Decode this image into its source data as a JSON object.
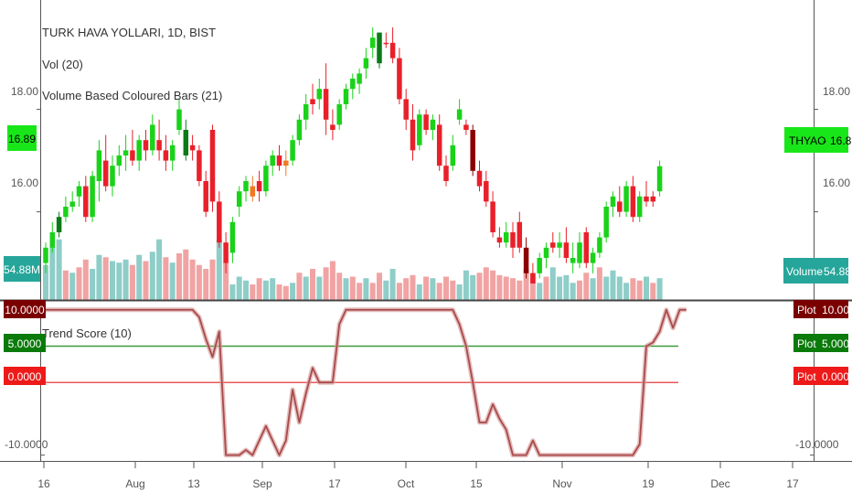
{
  "header": {
    "symbol_line": "TURK HAVA YOLLARI, 1D, BIST",
    "vol_label": "Vol (20)",
    "vbcb_label": "Volume Based Coloured Bars (21)",
    "trend_label": "Trend Score (10)"
  },
  "price_axis": {
    "ticks": [
      "18.00",
      "16.00"
    ],
    "current": "16.89"
  },
  "badges": {
    "left_price": "16.89",
    "left_volume": "54.88M",
    "right_symbol": "THYAO",
    "right_price": "16.89",
    "right_volume_label": "Volume",
    "right_volume": "54.88M",
    "plot_label": "Plot"
  },
  "score_axis": {
    "ticks": [
      "10.0000",
      "5.0000",
      "0.0000",
      "-10.0000"
    ],
    "left_ticks": [
      "10.0000",
      "5.0000",
      "0.0000",
      "-10.0000"
    ]
  },
  "x_axis": {
    "labels": [
      "16",
      "Aug",
      "13",
      "Sep",
      "17",
      "Oct",
      "15",
      "Nov",
      "19",
      "Dec",
      "17"
    ]
  },
  "colors": {
    "bull": "#19d219",
    "bear": "#e8202a",
    "dark_bull": "#0a7a16",
    "dark_bear": "#8b0000",
    "orange": "#f07a22",
    "vol_bull": "#8ecdc8",
    "vol_bear": "#f1a3a3",
    "trend_line": "#a94a4a",
    "upper_line": "#3a9a3a",
    "lower_line": "#e85858",
    "divider": "#444444"
  },
  "chart_data": [
    {
      "type": "candlestick",
      "title": "TURK HAVA YOLLARI, 1D, BIST",
      "y_ticks": [
        16.0,
        18.0
      ],
      "ylim": [
        14.6,
        19.6
      ],
      "last_price": 16.89,
      "ohlc": [
        [
          15.0,
          15.4,
          14.8,
          15.3,
          "bull"
        ],
        [
          15.3,
          15.8,
          15.2,
          15.6,
          "bull"
        ],
        [
          15.6,
          16.0,
          15.5,
          15.9,
          "dark_bull"
        ],
        [
          15.9,
          16.3,
          15.8,
          16.1,
          "bull"
        ],
        [
          16.1,
          16.4,
          16.0,
          16.2,
          "bull"
        ],
        [
          16.3,
          16.6,
          16.1,
          16.5,
          "bull"
        ],
        [
          16.5,
          16.7,
          15.8,
          15.9,
          "bear"
        ],
        [
          15.9,
          16.8,
          15.8,
          16.7,
          "bull"
        ],
        [
          16.6,
          17.4,
          16.2,
          17.2,
          "bull"
        ],
        [
          17.0,
          17.5,
          16.4,
          16.5,
          "bear"
        ],
        [
          16.5,
          17.1,
          16.3,
          16.9,
          "bull"
        ],
        [
          16.9,
          17.3,
          16.7,
          17.1,
          "bull"
        ],
        [
          17.1,
          17.5,
          16.8,
          17.2,
          "bull"
        ],
        [
          17.2,
          17.6,
          16.9,
          17.0,
          "bear"
        ],
        [
          17.0,
          17.5,
          16.8,
          17.4,
          "bull"
        ],
        [
          17.4,
          17.6,
          17.0,
          17.2,
          "bear"
        ],
        [
          17.2,
          17.9,
          17.1,
          17.7,
          "bull"
        ],
        [
          17.4,
          17.8,
          17.0,
          17.2,
          "bear"
        ],
        [
          17.2,
          17.5,
          16.8,
          17.0,
          "bear"
        ],
        [
          17.0,
          17.4,
          16.8,
          17.3,
          "bull"
        ],
        [
          17.6,
          18.2,
          17.5,
          18.0,
          "bull"
        ],
        [
          17.6,
          17.8,
          17.0,
          17.1,
          "dark_bull"
        ],
        [
          17.3,
          17.5,
          17.0,
          17.2,
          "bear"
        ],
        [
          17.2,
          17.3,
          16.5,
          16.6,
          "bear"
        ],
        [
          16.6,
          16.8,
          15.9,
          16.0,
          "bear"
        ],
        [
          17.6,
          17.7,
          16.0,
          16.2,
          "bear"
        ],
        [
          16.2,
          16.4,
          15.3,
          15.4,
          "bear"
        ],
        [
          15.4,
          15.6,
          14.8,
          15.0,
          "bear"
        ],
        [
          15.2,
          15.9,
          15.0,
          15.8,
          "bull"
        ],
        [
          16.1,
          16.5,
          15.9,
          16.4,
          "bull"
        ],
        [
          16.4,
          16.7,
          16.2,
          16.6,
          "bull"
        ],
        [
          16.5,
          16.7,
          16.2,
          16.3,
          "orange"
        ],
        [
          16.6,
          16.8,
          16.2,
          16.4,
          "bear"
        ],
        [
          16.4,
          17.0,
          16.3,
          16.9,
          "bull"
        ],
        [
          16.9,
          17.2,
          16.7,
          17.1,
          "bull"
        ],
        [
          17.1,
          17.3,
          16.8,
          16.9,
          "bear"
        ],
        [
          16.9,
          17.2,
          16.7,
          17.0,
          "orange"
        ],
        [
          17.0,
          17.5,
          16.9,
          17.4,
          "bull"
        ],
        [
          17.4,
          17.9,
          17.3,
          17.8,
          "bull"
        ],
        [
          17.8,
          18.3,
          17.6,
          18.1,
          "bull"
        ],
        [
          18.1,
          18.5,
          17.9,
          18.2,
          "bear"
        ],
        [
          18.2,
          18.6,
          18.0,
          18.4,
          "bull"
        ],
        [
          18.4,
          18.9,
          17.5,
          17.8,
          "bear"
        ],
        [
          17.6,
          18.0,
          17.4,
          17.7,
          "bear"
        ],
        [
          17.7,
          18.2,
          17.6,
          18.1,
          "bull"
        ],
        [
          18.1,
          18.5,
          18.0,
          18.4,
          "bull"
        ],
        [
          18.4,
          18.7,
          18.2,
          18.6,
          "bull"
        ],
        [
          18.5,
          18.8,
          18.3,
          18.7,
          "bull"
        ],
        [
          18.8,
          19.2,
          18.6,
          19.0,
          "bull"
        ],
        [
          19.2,
          19.6,
          19.0,
          19.4,
          "bull"
        ],
        [
          19.5,
          19.5,
          18.8,
          18.9,
          "dark_bull"
        ],
        [
          19.3,
          19.5,
          19.2,
          19.3,
          "bear"
        ],
        [
          19.3,
          19.6,
          18.9,
          19.0,
          "bear"
        ],
        [
          19.0,
          19.2,
          18.1,
          18.2,
          "bear"
        ],
        [
          18.2,
          18.4,
          17.6,
          17.8,
          "bear"
        ],
        [
          17.8,
          18.1,
          17.0,
          17.2,
          "bear"
        ],
        [
          17.3,
          18.0,
          17.2,
          17.9,
          "bull"
        ],
        [
          17.9,
          18.0,
          17.5,
          17.6,
          "bear"
        ],
        [
          17.6,
          17.9,
          17.4,
          17.8,
          "bull"
        ],
        [
          17.7,
          17.9,
          16.8,
          16.9,
          "bear"
        ],
        [
          16.9,
          17.1,
          16.5,
          16.6,
          "bear"
        ],
        [
          16.9,
          17.5,
          16.8,
          17.3,
          "bull"
        ],
        [
          17.8,
          18.2,
          17.7,
          18.0,
          "bull"
        ],
        [
          17.7,
          17.8,
          17.5,
          17.6,
          "bear"
        ],
        [
          17.6,
          17.7,
          16.7,
          16.8,
          "dark_bear"
        ],
        [
          16.8,
          17.0,
          16.4,
          16.5,
          "bear"
        ],
        [
          16.6,
          16.8,
          16.1,
          16.2,
          "bear"
        ],
        [
          16.2,
          16.4,
          15.5,
          15.6,
          "bear"
        ],
        [
          15.5,
          15.7,
          15.3,
          15.4,
          "bear"
        ],
        [
          15.4,
          15.8,
          15.3,
          15.6,
          "bull"
        ],
        [
          15.6,
          15.8,
          15.1,
          15.3,
          "bear"
        ],
        [
          15.8,
          16.0,
          15.2,
          15.3,
          "bear"
        ],
        [
          15.3,
          15.5,
          14.7,
          14.8,
          "dark_bear"
        ],
        [
          14.8,
          15.0,
          14.6,
          14.6,
          "bear"
        ],
        [
          14.8,
          15.2,
          14.7,
          15.1,
          "bull"
        ],
        [
          15.1,
          15.4,
          14.9,
          15.3,
          "bull"
        ],
        [
          15.4,
          15.6,
          15.2,
          15.3,
          "bear"
        ],
        [
          15.3,
          15.6,
          15.1,
          15.4,
          "bull"
        ],
        [
          15.4,
          15.7,
          15.0,
          15.1,
          "bear"
        ],
        [
          15.1,
          15.4,
          14.8,
          15.0,
          "bull"
        ],
        [
          15.0,
          15.6,
          14.9,
          15.4,
          "bull"
        ],
        [
          15.6,
          15.7,
          14.9,
          15.0,
          "bear"
        ],
        [
          15.0,
          15.3,
          14.8,
          15.2,
          "bull"
        ],
        [
          15.2,
          15.6,
          15.1,
          15.5,
          "bull"
        ],
        [
          15.5,
          16.2,
          15.4,
          16.1,
          "bull"
        ],
        [
          16.1,
          16.4,
          15.9,
          16.3,
          "bull"
        ],
        [
          16.2,
          16.5,
          15.9,
          16.0,
          "bear"
        ],
        [
          16.0,
          16.6,
          15.9,
          16.5,
          "bull"
        ],
        [
          16.5,
          16.7,
          15.8,
          15.9,
          "bear"
        ],
        [
          15.9,
          16.4,
          15.8,
          16.3,
          "bull"
        ],
        [
          16.3,
          16.6,
          16.1,
          16.2,
          "bear"
        ],
        [
          16.2,
          16.4,
          16.1,
          16.3,
          "bear"
        ],
        [
          16.4,
          17.0,
          16.3,
          16.89,
          "bull"
        ]
      ]
    },
    {
      "type": "bar",
      "title": "Vol (20)",
      "last_value": "54.88M",
      "values": [
        [
          0.45,
          "bull"
        ],
        [
          0.68,
          "bull"
        ],
        [
          0.78,
          "bull"
        ],
        [
          0.38,
          "bear"
        ],
        [
          0.35,
          "bull"
        ],
        [
          0.42,
          "bear"
        ],
        [
          0.52,
          "bear"
        ],
        [
          0.4,
          "bull"
        ],
        [
          0.58,
          "bull"
        ],
        [
          0.55,
          "bear"
        ],
        [
          0.5,
          "bull"
        ],
        [
          0.48,
          "bull"
        ],
        [
          0.52,
          "bull"
        ],
        [
          0.45,
          "bear"
        ],
        [
          0.58,
          "bull"
        ],
        [
          0.5,
          "bear"
        ],
        [
          0.62,
          "bull"
        ],
        [
          0.78,
          "bull"
        ],
        [
          0.55,
          "bear"
        ],
        [
          0.48,
          "bull"
        ],
        [
          0.6,
          "bear"
        ],
        [
          0.65,
          "bear"
        ],
        [
          0.52,
          "bear"
        ],
        [
          0.45,
          "bear"
        ],
        [
          0.4,
          "bear"
        ],
        [
          0.52,
          "bear"
        ],
        [
          0.78,
          "bull"
        ],
        [
          0.48,
          "bear"
        ],
        [
          0.2,
          "bull"
        ],
        [
          0.3,
          "bull"
        ],
        [
          0.25,
          "bull"
        ],
        [
          0.2,
          "bear"
        ],
        [
          0.28,
          "bear"
        ],
        [
          0.25,
          "bull"
        ],
        [
          0.28,
          "bull"
        ],
        [
          0.2,
          "bear"
        ],
        [
          0.18,
          "bear"
        ],
        [
          0.22,
          "bull"
        ],
        [
          0.35,
          "bear"
        ],
        [
          0.3,
          "bull"
        ],
        [
          0.4,
          "bear"
        ],
        [
          0.3,
          "bull"
        ],
        [
          0.42,
          "bear"
        ],
        [
          0.5,
          "bear"
        ],
        [
          0.35,
          "bear"
        ],
        [
          0.28,
          "bull"
        ],
        [
          0.3,
          "bear"
        ],
        [
          0.22,
          "bear"
        ],
        [
          0.28,
          "bull"
        ],
        [
          0.22,
          "bear"
        ],
        [
          0.35,
          "bear"
        ],
        [
          0.25,
          "bull"
        ],
        [
          0.4,
          "bull"
        ],
        [
          0.22,
          "bear"
        ],
        [
          0.28,
          "bear"
        ],
        [
          0.32,
          "bear"
        ],
        [
          0.2,
          "bull"
        ],
        [
          0.3,
          "bear"
        ],
        [
          0.28,
          "bull"
        ],
        [
          0.22,
          "bear"
        ],
        [
          0.3,
          "bear"
        ],
        [
          0.25,
          "bear"
        ],
        [
          0.2,
          "bull"
        ],
        [
          0.38,
          "bull"
        ],
        [
          0.32,
          "bull"
        ],
        [
          0.35,
          "bear"
        ],
        [
          0.42,
          "bear"
        ],
        [
          0.38,
          "bear"
        ],
        [
          0.32,
          "bear"
        ],
        [
          0.3,
          "bear"
        ],
        [
          0.28,
          "bear"
        ],
        [
          0.25,
          "bear"
        ],
        [
          0.4,
          "bear"
        ],
        [
          0.35,
          "bear"
        ],
        [
          0.22,
          "bull"
        ],
        [
          0.3,
          "bear"
        ],
        [
          0.42,
          "bull"
        ],
        [
          0.3,
          "bull"
        ],
        [
          0.32,
          "bull"
        ],
        [
          0.22,
          "bull"
        ],
        [
          0.25,
          "bear"
        ],
        [
          0.35,
          "bear"
        ],
        [
          0.28,
          "bull"
        ],
        [
          0.42,
          "bear"
        ],
        [
          0.3,
          "bull"
        ],
        [
          0.38,
          "bull"
        ],
        [
          0.3,
          "bull"
        ],
        [
          0.22,
          "bull"
        ],
        [
          0.28,
          "bear"
        ],
        [
          0.25,
          "bear"
        ],
        [
          0.3,
          "bull"
        ],
        [
          0.22,
          "bear"
        ],
        [
          0.28,
          "bull"
        ]
      ]
    },
    {
      "type": "line",
      "title": "Trend Score (10)",
      "y_ticks": [
        10,
        5,
        0,
        -10
      ],
      "ylim": [
        -10.8,
        10.6
      ],
      "reference_lines": [
        5,
        0
      ],
      "last_value": 10,
      "points": [
        [
          0,
          10
        ],
        [
          22,
          10
        ],
        [
          23,
          9
        ],
        [
          24,
          6
        ],
        [
          25,
          3.5
        ],
        [
          26,
          7
        ],
        [
          27,
          -10
        ],
        [
          29,
          -10
        ],
        [
          30,
          -9.3
        ],
        [
          31,
          -10
        ],
        [
          32,
          -8
        ],
        [
          33,
          -6
        ],
        [
          34,
          -8
        ],
        [
          35,
          -10
        ],
        [
          36,
          -8
        ],
        [
          37,
          -1
        ],
        [
          38,
          -5.5
        ],
        [
          39,
          -1.5
        ],
        [
          40,
          2
        ],
        [
          41,
          0
        ],
        [
          42,
          0
        ],
        [
          43,
          0
        ],
        [
          44,
          8
        ],
        [
          45,
          10
        ],
        [
          61,
          10
        ],
        [
          62,
          8
        ],
        [
          63,
          5
        ],
        [
          64,
          0
        ],
        [
          65,
          -5.5
        ],
        [
          66,
          -5.5
        ],
        [
          67,
          -3
        ],
        [
          68,
          -5
        ],
        [
          69,
          -6.5
        ],
        [
          70,
          -10
        ],
        [
          72,
          -10
        ],
        [
          73,
          -8
        ],
        [
          74,
          -10
        ],
        [
          75,
          -10
        ],
        [
          88,
          -10
        ],
        [
          89,
          -8.5
        ],
        [
          90,
          5
        ],
        [
          91,
          5.5
        ],
        [
          92,
          7
        ],
        [
          93,
          10
        ],
        [
          94,
          7.5
        ],
        [
          95,
          10
        ],
        [
          96,
          10
        ]
      ]
    }
  ]
}
